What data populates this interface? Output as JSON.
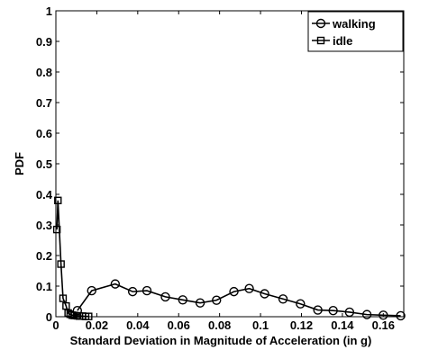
{
  "chart_data": {
    "type": "line",
    "xlabel": "Standard Deviation in Magnitude of Acceleration (in g)",
    "ylabel": "PDF",
    "xlim": [
      0,
      0.17
    ],
    "ylim": [
      0,
      1
    ],
    "xticks": [
      0,
      0.02,
      0.04,
      0.06,
      0.08,
      0.1,
      0.12,
      0.14,
      0.16
    ],
    "xtick_labels": [
      "0",
      "0.02",
      "0.04",
      "0.06",
      "0.08",
      "0.1",
      "0.12",
      "0.14",
      "0.16"
    ],
    "yticks": [
      0,
      0.1,
      0.2,
      0.3,
      0.4,
      0.5,
      0.6,
      0.7,
      0.8,
      0.9,
      1
    ],
    "ytick_labels": [
      "0",
      "0.1",
      "0.2",
      "0.3",
      "0.4",
      "0.5",
      "0.6",
      "0.7",
      "0.8",
      "0.9",
      "1"
    ],
    "grid": false,
    "legend_position": "top-right",
    "series": [
      {
        "name": "walking",
        "marker": "circle",
        "color": "#000000",
        "x": [
          0.0105,
          0.0175,
          0.029,
          0.0375,
          0.0445,
          0.0535,
          0.062,
          0.0705,
          0.0785,
          0.087,
          0.0945,
          0.102,
          0.111,
          0.1195,
          0.128,
          0.1355,
          0.1435,
          0.152,
          0.16,
          0.1685
        ],
        "y": [
          0.02,
          0.085,
          0.107,
          0.082,
          0.085,
          0.065,
          0.055,
          0.045,
          0.054,
          0.082,
          0.092,
          0.075,
          0.058,
          0.042,
          0.022,
          0.02,
          0.015,
          0.007,
          0.005,
          0.003
        ]
      },
      {
        "name": "idle",
        "marker": "square",
        "color": "#000000",
        "x": [
          0.0005,
          0.001,
          0.0025,
          0.0035,
          0.005,
          0.006,
          0.007,
          0.008,
          0.009,
          0.0105,
          0.0115,
          0.013,
          0.0145,
          0.016
        ],
        "y": [
          0.285,
          0.38,
          0.172,
          0.06,
          0.035,
          0.012,
          0.008,
          0.005,
          0.004,
          0.003,
          0.002,
          0.002,
          0.001,
          0.001
        ]
      }
    ]
  }
}
